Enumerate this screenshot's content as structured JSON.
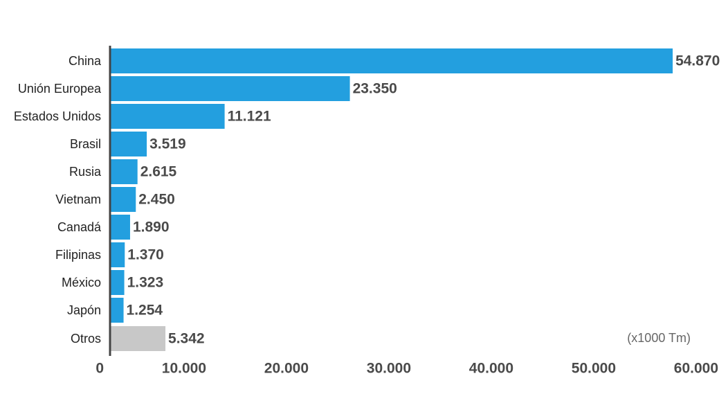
{
  "chart_data": {
    "type": "bar",
    "orientation": "horizontal",
    "categories": [
      "China",
      "Unión Europea",
      "Estados Unidos",
      "Brasil",
      "Rusia",
      "Vietnam",
      "Canadá",
      "Filipinas",
      "México",
      "Japón",
      "Otros"
    ],
    "values": [
      54870,
      23350,
      11121,
      3519,
      2615,
      2450,
      1890,
      1370,
      1323,
      1254,
      5342
    ],
    "value_labels": [
      "54.870",
      "23.350",
      "11.121",
      "3.519",
      "2.615",
      "2.450",
      "1.890",
      "1.370",
      "1.323",
      "1.254",
      "5.342"
    ],
    "colors": [
      "#239fdf",
      "#239fdf",
      "#239fdf",
      "#239fdf",
      "#239fdf",
      "#239fdf",
      "#239fdf",
      "#239fdf",
      "#239fdf",
      "#239fdf",
      "#c8c8c8"
    ],
    "xlim": [
      0,
      60000
    ],
    "xticks": [
      0,
      {
        "value": 10000,
        "label": "10.000"
      },
      {
        "value": 20000,
        "label": "20.000"
      },
      {
        "value": 30000,
        "label": "30.000"
      },
      {
        "value": 40000,
        "label": "40.000"
      },
      {
        "value": 50000,
        "label": "50.000"
      },
      {
        "value": 60000,
        "label": "60.000"
      }
    ],
    "annotation": "(x1000 Tm)",
    "grid": false
  }
}
